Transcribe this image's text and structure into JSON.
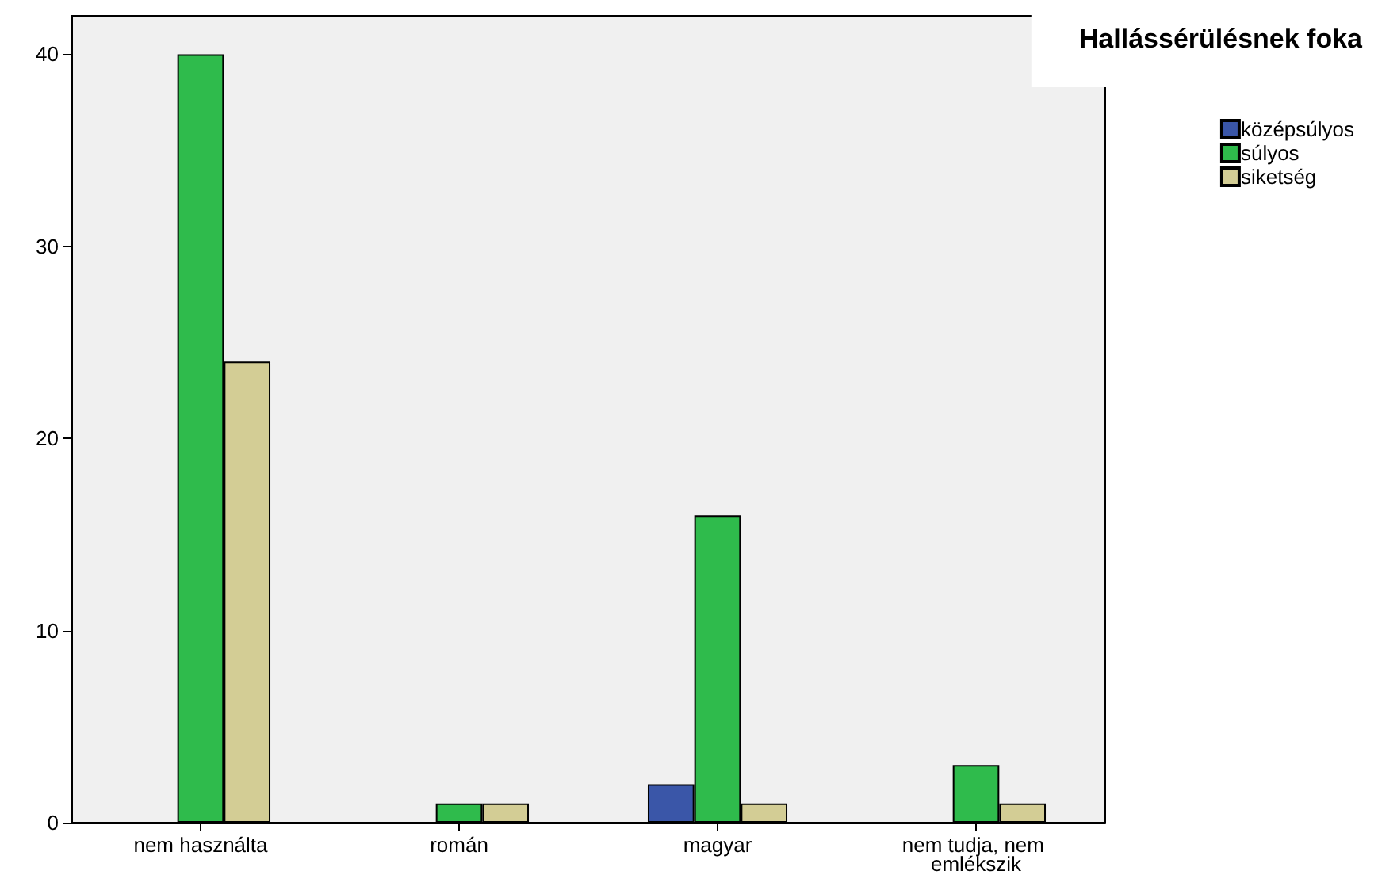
{
  "chart_data": {
    "type": "bar",
    "legend_title": "Hallássérülésnek foka",
    "categories": [
      "nem használta",
      "román",
      "magyar",
      "nem tudja, nem emlékszik"
    ],
    "series": [
      {
        "name": "középsúlyos",
        "color": "#3a56a8",
        "values": [
          0,
          0,
          2,
          0
        ]
      },
      {
        "name": "súlyos",
        "color": "#2fbb4c",
        "values": [
          40,
          1,
          16,
          3
        ]
      },
      {
        "name": "siketség",
        "color": "#d3cd95",
        "values": [
          24,
          1,
          1,
          1
        ]
      }
    ],
    "ylim": [
      0,
      42
    ],
    "yticks": [
      0,
      10,
      20,
      30,
      40
    ],
    "grid": false,
    "legend": "top right"
  }
}
